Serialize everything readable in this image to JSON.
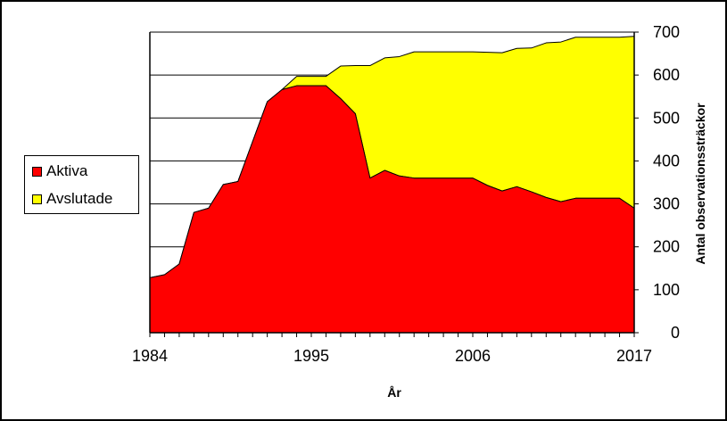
{
  "chart_data": {
    "type": "area",
    "stacked": true,
    "xlabel": "År",
    "ylabel": "Antal observationssträckor",
    "x": [
      1984,
      1985,
      1986,
      1987,
      1988,
      1989,
      1990,
      1991,
      1992,
      1993,
      1994,
      1995,
      1996,
      1997,
      1998,
      1999,
      2000,
      2001,
      2002,
      2003,
      2004,
      2005,
      2006,
      2007,
      2008,
      2009,
      2010,
      2011,
      2012,
      2013,
      2014,
      2015,
      2016,
      2017
    ],
    "x_tick_labels": [
      "1984",
      "1995",
      "2006",
      "2017"
    ],
    "x_ticks": [
      1984,
      1995,
      2006,
      2017
    ],
    "ylim": [
      0,
      700
    ],
    "y_ticks": [
      0,
      100,
      200,
      300,
      400,
      500,
      600,
      700
    ],
    "y_axis_side": "right",
    "grid": "horizontal",
    "legend_position": "left",
    "series": [
      {
        "name": "Aktiva",
        "color": "#ff0000",
        "values": [
          128,
          135,
          160,
          280,
          290,
          345,
          352,
          445,
          538,
          566,
          575,
          575,
          575,
          545,
          510,
          360,
          378,
          365,
          360,
          360,
          360,
          360,
          360,
          343,
          330,
          340,
          328,
          315,
          305,
          313,
          313,
          313,
          313,
          290
        ]
      },
      {
        "name": "Avslutade",
        "color": "#ffff00",
        "values": [
          0,
          0,
          0,
          0,
          0,
          0,
          0,
          0,
          0,
          0,
          22,
          22,
          22,
          76,
          112,
          262,
          262,
          278,
          294,
          294,
          294,
          294,
          294,
          310,
          322,
          322,
          335,
          360,
          372,
          375,
          375,
          375,
          375,
          400
        ]
      }
    ]
  }
}
